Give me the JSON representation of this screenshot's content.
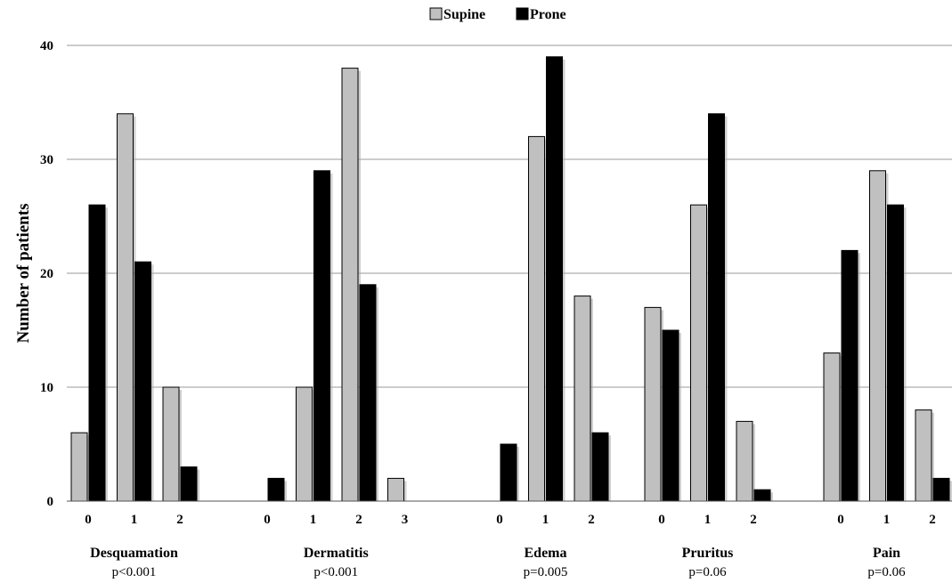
{
  "chart_data": {
    "type": "bar",
    "ylabel": "Number of patients",
    "ylim": [
      0,
      40
    ],
    "yticks": [
      "0",
      "10",
      "20",
      "30",
      "40"
    ],
    "grid": true,
    "legend_position": "top-center",
    "series": [
      {
        "name": "Supine",
        "color": "#c0c0c0"
      },
      {
        "name": "Prone",
        "color": "#000000"
      }
    ],
    "groups": [
      {
        "name": "Desquamation",
        "pvalue": "p<0.001",
        "categories": [
          "0",
          "1",
          "2"
        ],
        "supine": [
          6,
          34,
          10
        ],
        "prone": [
          26,
          21,
          3
        ]
      },
      {
        "name": "Dermatitis",
        "pvalue": "p<0.001",
        "categories": [
          "0",
          "1",
          "2",
          "3"
        ],
        "supine": [
          0,
          10,
          38,
          2
        ],
        "prone": [
          2,
          29,
          19,
          0
        ]
      },
      {
        "name": "Edema",
        "pvalue": "p=0.005",
        "categories": [
          "0",
          "1",
          "2"
        ],
        "supine": [
          0,
          32,
          18
        ],
        "prone": [
          5,
          39,
          6
        ]
      },
      {
        "name": "Pruritus",
        "pvalue": "p=0.06",
        "categories": [
          "0",
          "1",
          "2"
        ],
        "supine": [
          17,
          26,
          7
        ],
        "prone": [
          15,
          34,
          1
        ]
      },
      {
        "name": "Pain",
        "pvalue": "p=0.06",
        "categories": [
          "0",
          "1",
          "2"
        ],
        "supine": [
          13,
          29,
          8
        ],
        "prone": [
          22,
          26,
          2
        ]
      }
    ]
  }
}
